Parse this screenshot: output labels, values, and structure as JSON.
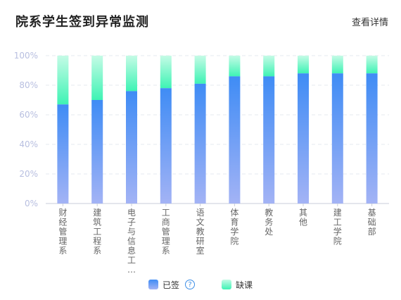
{
  "header": {
    "title": "院系学生签到异常监测",
    "detail_label": "查看详情"
  },
  "legend": {
    "signed_label": "已签",
    "absent_label": "缺课",
    "help_icon": "question-circle-icon",
    "help_glyph": "?"
  },
  "colors": {
    "signed_top": "#3f8cf5",
    "signed_bottom": "#a3b3f5",
    "absent_top": "#c5fbe6",
    "absent_bottom": "#3ef3b4",
    "axis_text": "#b8bfe0",
    "grid": "#e6e9ef",
    "category_text": "#666666"
  },
  "chart_data": {
    "type": "bar",
    "stacked": true,
    "categories": [
      "财经管理系",
      "建筑工程系",
      "电子与信息工...",
      "工商管理系",
      "语文教研室",
      "体育学院",
      "教务处",
      "其他",
      "建工学院",
      "基础部"
    ],
    "series": [
      {
        "name": "已签",
        "values": [
          67,
          70,
          76,
          78,
          81,
          86,
          86,
          88,
          88,
          88
        ]
      },
      {
        "name": "缺课",
        "values": [
          33,
          30,
          24,
          22,
          19,
          14,
          14,
          12,
          12,
          12
        ]
      }
    ],
    "yticks": [
      "0%",
      "20%",
      "40%",
      "60%",
      "80%",
      "100%"
    ],
    "ylim": [
      0,
      100
    ],
    "grid": true,
    "legend_position": "bottom"
  }
}
